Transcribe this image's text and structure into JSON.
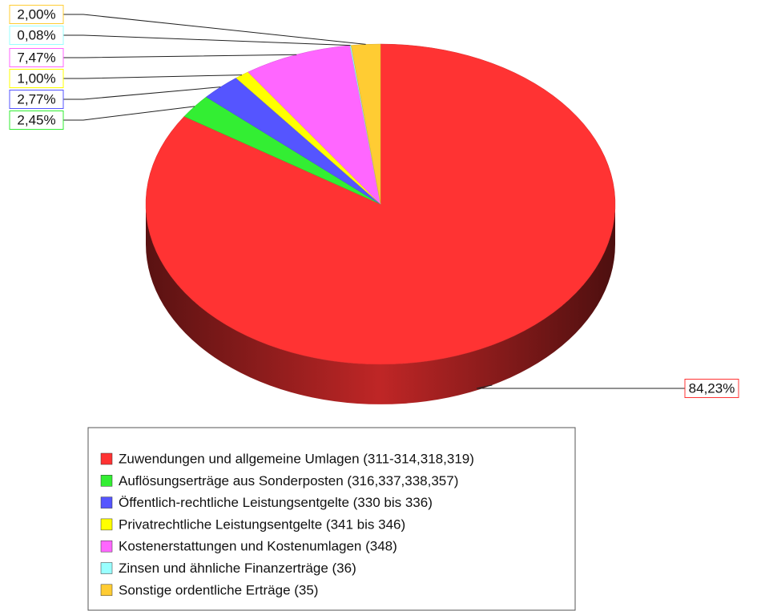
{
  "chart_data": {
    "type": "pie",
    "categories": [
      "Zuwendungen und allgemeine Umlagen (311-314,318,319)",
      "Auflösungserträge aus Sonderposten (316,337,338,357)",
      "Öffentlich-rechtliche Leistungsentgelte (330 bis 336)",
      "Privatrechtliche Leistungsentgelte (341 bis 346)",
      "Kostenerstattungen und Kostenumlagen (348)",
      "Zinsen und ähnliche Finanzerträge (36)",
      "Sonstige ordentliche Erträge (35)"
    ],
    "values": [
      84.23,
      2.45,
      2.77,
      1.0,
      7.47,
      0.08,
      2.0
    ],
    "value_labels": [
      "84,23%",
      "2,45%",
      "2,77%",
      "1,00%",
      "7,47%",
      "0,08%",
      "2,00%"
    ],
    "colors": [
      "#ff3333",
      "#33ee33",
      "#5555ff",
      "#ffff00",
      "#ff66ff",
      "#99ffff",
      "#ffcc33"
    ],
    "legend": "bottom"
  }
}
